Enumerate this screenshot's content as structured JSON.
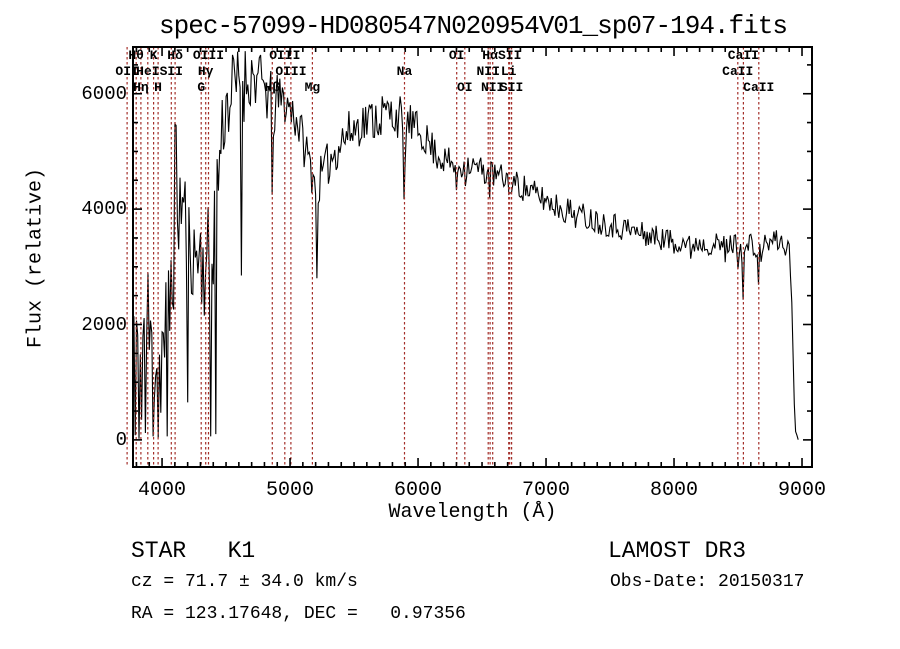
{
  "title": "spec-57099-HD080547N020954V01_sp07-194.fits",
  "footer": {
    "class_label": "STAR   K1",
    "survey": "LAMOST DR3",
    "cz": "cz = 71.7 ± 34.0 km/s",
    "obs_date": "Obs-Date: 20150317",
    "radec": "RA = 123.17648, DEC =   0.97356"
  },
  "chart_data": {
    "type": "line",
    "title": "spec-57099-HD080547N020954V01_sp07-194.fits",
    "xlabel": "Wavelength (Å)",
    "ylabel": "Flux (relative)",
    "xlim": [
      3773,
      9078
    ],
    "ylim": [
      -470,
      6810
    ],
    "xticks": [
      4000,
      5000,
      6000,
      7000,
      8000,
      9000
    ],
    "yticks": [
      0,
      2000,
      4000,
      6000
    ],
    "minor_x_step": 100,
    "minor_y_step": 500,
    "grid": false,
    "legend": "none",
    "line_color": "#000000",
    "ref_line_color": "#a42f2a",
    "spectral_lines": [
      {
        "label": "OII",
        "wavelength": 3727,
        "row": 2
      },
      {
        "label": "Hθ",
        "wavelength": 3798,
        "row": 1
      },
      {
        "label": "Hη",
        "wavelength": 3835,
        "row": 3
      },
      {
        "label": "HeI",
        "wavelength": 3889,
        "row": 2
      },
      {
        "label": "K",
        "wavelength": 3934,
        "row": 1
      },
      {
        "label": "H",
        "wavelength": 3969,
        "row": 3
      },
      {
        "label": "SII",
        "wavelength": 4072,
        "row": 2
      },
      {
        "label": "Hδ",
        "wavelength": 4102,
        "row": 1
      },
      {
        "label": "G",
        "wavelength": 4306,
        "row": 3
      },
      {
        "label": "Hγ",
        "wavelength": 4341,
        "row": 2
      },
      {
        "label": "OIII",
        "wavelength": 4363,
        "row": 1
      },
      {
        "label": "Hβ",
        "wavelength": 4861,
        "row": 3
      },
      {
        "label": "OIII",
        "wavelength": 4959,
        "row": 1
      },
      {
        "label": "OIII",
        "wavelength": 5007,
        "row": 2
      },
      {
        "label": "Mg",
        "wavelength": 5175,
        "row": 3
      },
      {
        "label": "Na",
        "wavelength": 5894,
        "row": 2
      },
      {
        "label": "OI",
        "wavelength": 6302,
        "row": 1
      },
      {
        "label": "OI",
        "wavelength": 6365,
        "row": 3
      },
      {
        "label": "NII",
        "wavelength": 6548,
        "row": 2
      },
      {
        "label": "Hα",
        "wavelength": 6563,
        "row": 1
      },
      {
        "label": "NII",
        "wavelength": 6583,
        "row": 3
      },
      {
        "label": "Li",
        "wavelength": 6708,
        "row": 2
      },
      {
        "label": "SII",
        "wavelength": 6716,
        "row": 1
      },
      {
        "label": "SII",
        "wavelength": 6731,
        "row": 3
      },
      {
        "label": "CaII",
        "wavelength": 8498,
        "row": 2
      },
      {
        "label": "CaII",
        "wavelength": 8542,
        "row": 1
      },
      {
        "label": "CaII",
        "wavelength": 8662,
        "row": 3
      }
    ],
    "envelope_points": [
      [
        3780,
        2100,
        1900
      ],
      [
        3800,
        1700,
        1700
      ],
      [
        3825,
        1300,
        1300
      ],
      [
        3850,
        1700,
        1500
      ],
      [
        3875,
        1900,
        1600
      ],
      [
        3900,
        1800,
        1500
      ],
      [
        3925,
        1300,
        1200
      ],
      [
        3950,
        1700,
        1300
      ],
      [
        3975,
        1200,
        1150
      ],
      [
        4000,
        1600,
        1400
      ],
      [
        4030,
        1700,
        1500
      ],
      [
        4060,
        2400,
        1400
      ],
      [
        4085,
        3300,
        1500
      ],
      [
        4110,
        4400,
        1100
      ],
      [
        4135,
        4000,
        1100
      ],
      [
        4160,
        4100,
        1000
      ],
      [
        4190,
        3700,
        900
      ],
      [
        4220,
        3400,
        800
      ],
      [
        4250,
        3100,
        800
      ],
      [
        4280,
        3300,
        900
      ],
      [
        4310,
        3100,
        900
      ],
      [
        4340,
        3000,
        1000
      ],
      [
        4370,
        2900,
        1200
      ],
      [
        4400,
        3600,
        1000
      ],
      [
        4430,
        4400,
        900
      ],
      [
        4460,
        5200,
        800
      ],
      [
        4490,
        5700,
        700
      ],
      [
        4520,
        5900,
        750
      ],
      [
        4560,
        6100,
        700
      ],
      [
        4600,
        6200,
        650
      ],
      [
        4640,
        6200,
        700
      ],
      [
        4680,
        6300,
        600
      ],
      [
        4720,
        6300,
        550
      ],
      [
        4760,
        6200,
        550
      ],
      [
        4800,
        6100,
        500
      ],
      [
        4840,
        5900,
        550
      ],
      [
        4870,
        5700,
        600
      ],
      [
        4900,
        5900,
        450
      ],
      [
        4940,
        5900,
        400
      ],
      [
        4980,
        5800,
        400
      ],
      [
        5020,
        5700,
        400
      ],
      [
        5060,
        5500,
        400
      ],
      [
        5100,
        5200,
        400
      ],
      [
        5140,
        4900,
        400
      ],
      [
        5180,
        4600,
        400
      ],
      [
        5220,
        4450,
        400
      ],
      [
        5260,
        4600,
        400
      ],
      [
        5300,
        4800,
        400
      ],
      [
        5350,
        5000,
        400
      ],
      [
        5400,
        5200,
        400
      ],
      [
        5450,
        5300,
        400
      ],
      [
        5500,
        5400,
        380
      ],
      [
        5560,
        5500,
        380
      ],
      [
        5620,
        5550,
        400
      ],
      [
        5680,
        5600,
        420
      ],
      [
        5740,
        5650,
        420
      ],
      [
        5800,
        5650,
        400
      ],
      [
        5860,
        5600,
        380
      ],
      [
        5895,
        5150,
        450
      ],
      [
        5920,
        5500,
        350
      ],
      [
        5960,
        5450,
        330
      ],
      [
        6000,
        5350,
        320
      ],
      [
        6050,
        5250,
        300
      ],
      [
        6100,
        5100,
        300
      ],
      [
        6150,
        4950,
        280
      ],
      [
        6200,
        4850,
        260
      ],
      [
        6250,
        4800,
        260
      ],
      [
        6300,
        4750,
        280
      ],
      [
        6350,
        4750,
        260
      ],
      [
        6400,
        4780,
        240
      ],
      [
        6450,
        4720,
        240
      ],
      [
        6500,
        4680,
        240
      ],
      [
        6550,
        4620,
        260
      ],
      [
        6600,
        4580,
        240
      ],
      [
        6650,
        4550,
        240
      ],
      [
        6700,
        4500,
        260
      ],
      [
        6750,
        4450,
        240
      ],
      [
        6800,
        4400,
        240
      ],
      [
        6860,
        4330,
        240
      ],
      [
        6920,
        4250,
        240
      ],
      [
        6980,
        4180,
        240
      ],
      [
        7050,
        4100,
        240
      ],
      [
        7120,
        4020,
        240
      ],
      [
        7190,
        3950,
        260
      ],
      [
        7260,
        3900,
        240
      ],
      [
        7330,
        3850,
        230
      ],
      [
        7400,
        3800,
        230
      ],
      [
        7470,
        3760,
        230
      ],
      [
        7540,
        3720,
        230
      ],
      [
        7610,
        3680,
        240
      ],
      [
        7680,
        3620,
        230
      ],
      [
        7750,
        3570,
        220
      ],
      [
        7820,
        3530,
        220
      ],
      [
        7890,
        3500,
        210
      ],
      [
        7960,
        3470,
        210
      ],
      [
        8030,
        3450,
        200
      ],
      [
        8100,
        3430,
        210
      ],
      [
        8170,
        3420,
        200
      ],
      [
        8240,
        3410,
        200
      ],
      [
        8310,
        3390,
        200
      ],
      [
        8380,
        3370,
        210
      ],
      [
        8440,
        3380,
        190
      ],
      [
        8480,
        3420,
        180
      ],
      [
        8500,
        3300,
        200
      ],
      [
        8520,
        3400,
        180
      ],
      [
        8545,
        3100,
        250
      ],
      [
        8570,
        3380,
        180
      ],
      [
        8610,
        3400,
        180
      ],
      [
        8660,
        3150,
        220
      ],
      [
        8700,
        3380,
        180
      ],
      [
        8740,
        3420,
        190
      ],
      [
        8790,
        3460,
        200
      ],
      [
        8840,
        3420,
        200
      ],
      [
        8880,
        3380,
        220
      ],
      [
        8905,
        3150,
        250
      ],
      [
        8918,
        2600,
        250
      ],
      [
        8930,
        1500,
        300
      ],
      [
        8942,
        500,
        200
      ],
      [
        8952,
        80,
        80
      ],
      [
        8975,
        10,
        15
      ]
    ],
    "absorption_dips": [
      [
        3792,
        80
      ],
      [
        3820,
        20
      ],
      [
        3868,
        120
      ],
      [
        3932,
        60
      ],
      [
        3974,
        40
      ],
      [
        4040,
        60
      ],
      [
        4195,
        650
      ],
      [
        4382,
        60
      ],
      [
        4422,
        100
      ],
      [
        4620,
        2850
      ],
      [
        4862,
        4250
      ],
      [
        5212,
        2800
      ],
      [
        5893,
        4170
      ],
      [
        6302,
        4330
      ],
      [
        6365,
        4400
      ],
      [
        6563,
        4190
      ],
      [
        6718,
        4280
      ],
      [
        8000,
        3230
      ],
      [
        8127,
        3140
      ],
      [
        8400,
        3080
      ],
      [
        8498,
        2960
      ],
      [
        8542,
        2430
      ],
      [
        8663,
        2690
      ]
    ],
    "emission_spikes": [
      [
        4095,
        5480
      ]
    ],
    "sample_step": 10,
    "wave_start": 3780,
    "wave_end": 8975,
    "flux_clip": [
      -30,
      6802
    ],
    "noise_seed": 11
  }
}
